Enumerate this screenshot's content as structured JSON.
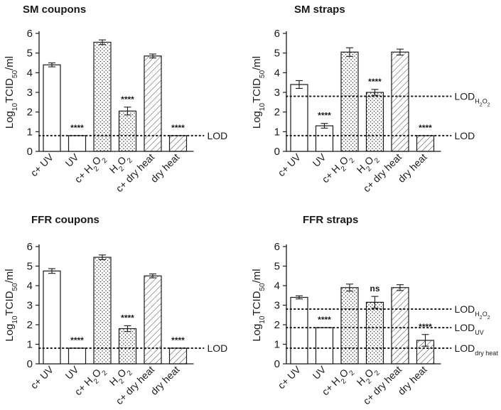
{
  "chart_data": [
    {
      "type": "bar",
      "title": "SM coupons",
      "ylabel": "Log10TCID50/ml",
      "ylim": [
        0,
        6
      ],
      "yticks": [
        0,
        1,
        2,
        3,
        4,
        5,
        6
      ],
      "categories": [
        "c+ UV",
        "UV",
        "c+ H2O2",
        "H2O2",
        "c+ dry heat",
        "dry heat"
      ],
      "values": [
        4.4,
        0.8,
        5.55,
        2.05,
        4.85,
        0.8
      ],
      "errors": [
        0.1,
        0.0,
        0.12,
        0.2,
        0.1,
        0.0
      ],
      "patterns": [
        "none",
        "none",
        "dots",
        "dots",
        "hatch",
        "hatch"
      ],
      "significance": [
        "",
        "****",
        "",
        "****",
        "",
        "****"
      ],
      "lod_lines": [
        {
          "label": "LOD",
          "sub": "",
          "value": 0.8
        }
      ]
    },
    {
      "type": "bar",
      "title": "SM straps",
      "ylabel": "Log10TCID50/ml",
      "ylim": [
        0,
        6
      ],
      "yticks": [
        0,
        1,
        2,
        3,
        4,
        5,
        6
      ],
      "categories": [
        "c+ UV",
        "UV",
        "c+ H2O2",
        "H2O2",
        "c+ dry heat",
        "dry heat"
      ],
      "values": [
        3.4,
        1.3,
        5.05,
        3.0,
        5.05,
        0.8
      ],
      "errors": [
        0.2,
        0.12,
        0.22,
        0.15,
        0.15,
        0.0
      ],
      "patterns": [
        "none",
        "none",
        "dots",
        "dots",
        "hatch",
        "hatch"
      ],
      "significance": [
        "",
        "****",
        "",
        "****",
        "",
        "****"
      ],
      "lod_lines": [
        {
          "label": "LOD",
          "sub": "H2O2",
          "value": 2.8
        },
        {
          "label": "LOD",
          "sub": "",
          "value": 0.8
        }
      ]
    },
    {
      "type": "bar",
      "title": "FFR coupons",
      "ylabel": "Log10TCID50/ml",
      "ylim": [
        0,
        6
      ],
      "yticks": [
        0,
        1,
        2,
        3,
        4,
        5,
        6
      ],
      "categories": [
        "c+ UV",
        "UV",
        "c+ H2O2",
        "H2O2",
        "c+ dry heat",
        "dry heat"
      ],
      "values": [
        4.75,
        0.8,
        5.45,
        1.8,
        4.5,
        0.8
      ],
      "errors": [
        0.12,
        0.0,
        0.12,
        0.15,
        0.1,
        0.0
      ],
      "patterns": [
        "none",
        "none",
        "dots",
        "dots",
        "hatch",
        "hatch"
      ],
      "significance": [
        "",
        "****",
        "",
        "****",
        "",
        "****"
      ],
      "lod_lines": [
        {
          "label": "LOD",
          "sub": "",
          "value": 0.8
        }
      ]
    },
    {
      "type": "bar",
      "title": "FFR straps",
      "ylabel": "Log10TCID50/ml",
      "ylim": [
        0,
        6
      ],
      "yticks": [
        0,
        1,
        2,
        3,
        4,
        5,
        6
      ],
      "categories": [
        "c+ UV",
        "UV",
        "c+ H2O2",
        "H2O2",
        "c+ dry heat",
        "dry heat"
      ],
      "values": [
        3.4,
        1.85,
        3.9,
        3.15,
        3.9,
        1.2
      ],
      "errors": [
        0.08,
        0.0,
        0.18,
        0.3,
        0.15,
        0.3
      ],
      "patterns": [
        "none",
        "none",
        "dots",
        "dots",
        "hatch",
        "hatch"
      ],
      "significance": [
        "",
        "****",
        "",
        "ns",
        "",
        "****"
      ],
      "lod_lines": [
        {
          "label": "LOD",
          "sub": "H2O2",
          "value": 2.8
        },
        {
          "label": "LOD",
          "sub": "UV",
          "value": 1.85
        },
        {
          "label": "LOD",
          "sub": "dry heat",
          "value": 0.8
        }
      ]
    }
  ]
}
